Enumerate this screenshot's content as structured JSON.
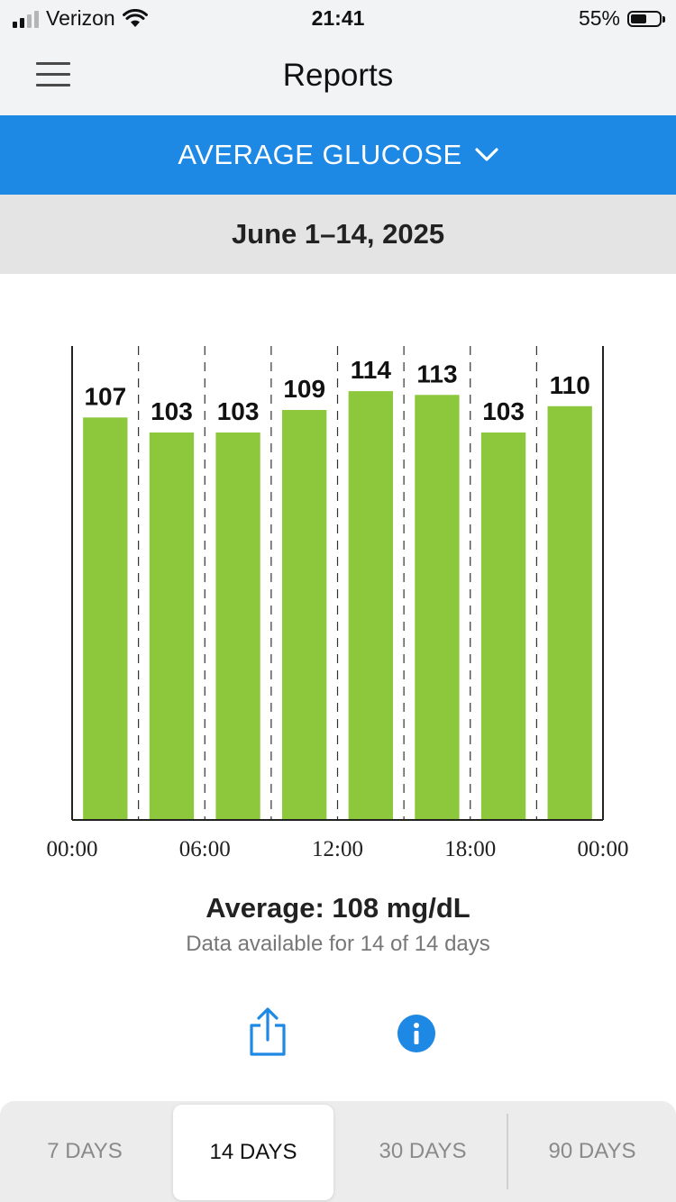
{
  "status_bar": {
    "carrier": "Verizon",
    "time": "21:41",
    "battery_percent": "55%",
    "signal_bars": 2,
    "signal_bars_total": 4,
    "battery_level": 0.55
  },
  "nav": {
    "title": "Reports",
    "menu_icon": "hamburger-menu-icon"
  },
  "metric_selector": {
    "label": "AVERAGE GLUCOSE",
    "icon": "chevron-down-icon"
  },
  "date_range": "June 1–14, 2025",
  "chart_data": {
    "type": "bar",
    "categories": [
      "00:00–03:00",
      "03:00–06:00",
      "06:00–09:00",
      "09:00–12:00",
      "12:00–15:00",
      "15:00–18:00",
      "18:00–21:00",
      "21:00–00:00"
    ],
    "values": [
      107,
      103,
      103,
      109,
      114,
      113,
      103,
      110
    ],
    "x_tick_labels": [
      "00:00",
      "06:00",
      "12:00",
      "18:00",
      "00:00"
    ],
    "ylim": [
      0,
      126
    ],
    "bar_color": "#8dc83c",
    "grid": "dashed vertical separators"
  },
  "summary": {
    "average": "Average: 108 mg/dL",
    "availability": "Data available for 14 of 14 days"
  },
  "actions": {
    "share_icon": "share-icon",
    "info_icon": "info-icon",
    "accent_color": "#1e88e5"
  },
  "range_tabs": [
    {
      "label": "7 DAYS",
      "selected": false
    },
    {
      "label": "14 DAYS",
      "selected": true
    },
    {
      "label": "30 DAYS",
      "selected": false
    },
    {
      "label": "90 DAYS",
      "selected": false
    }
  ]
}
